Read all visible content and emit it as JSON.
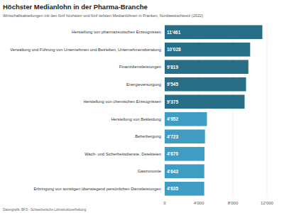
{
  "chart_data": {
    "type": "bar",
    "orientation": "horizontal",
    "title": "Höchster Medianlohn in der Pharma-Branche",
    "subtitle": "Wirtschaftsabteilungen mit den fünf höchsten und fünf tiefsten Medianlöhnen in Franken, Nordwestschweiz (2022)",
    "source": "Datengrafik: BFS - Schweizerische Lohnstrukturerhebung",
    "categories": [
      "Herstellung von pharmazeutischen Erzeugnissen",
      "Verwaltung und Führung von Unternehmen und Betrieben, Unternehmensberatung",
      "Finanzdienstleistungen",
      "Energieversorgung",
      "Herstellung von chemischen Erzeugnissen",
      "Herstellung von Bekleidung",
      "Beherbergung",
      "Wach- und Sicherheitsdienste, Detekteien",
      "Gastronomie",
      "Erbringung von sonstigen überwiegend persönlichen Dienstleistungen"
    ],
    "values": [
      11461,
      10028,
      9819,
      9545,
      9375,
      4952,
      4723,
      4670,
      4643,
      4635
    ],
    "value_labels": [
      "11'461",
      "10'028",
      "9'819",
      "9'545",
      "9'375",
      "4'952",
      "4'723",
      "4'670",
      "4'643",
      "4'635"
    ],
    "colors": [
      "#286e87",
      "#286e87",
      "#286e87",
      "#286e87",
      "#286e87",
      "#3f9cc2",
      "#3f9cc2",
      "#3f9cc2",
      "#3f9cc2",
      "#3f9cc2"
    ],
    "xlim": [
      0,
      12000
    ],
    "xticks": [
      0,
      {
        "value": 4000,
        "label": "4'000"
      },
      {
        "value": 8000,
        "label": "8'000"
      },
      {
        "value": 12000,
        "label": "12'000"
      }
    ],
    "grid": true,
    "data_labels": true
  }
}
